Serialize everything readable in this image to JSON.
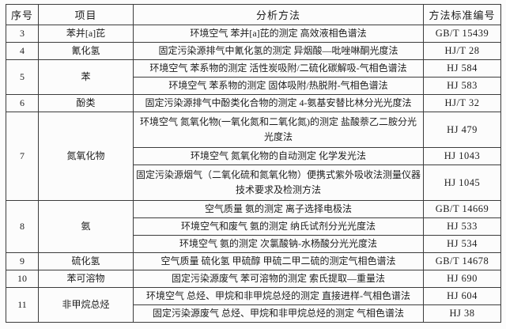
{
  "table": {
    "headers": [
      "序号",
      "项目",
      "分析方法",
      "方法标准编号"
    ],
    "rows": [
      {
        "seq": "3",
        "item": "苯并[a]芘",
        "methods": [
          {
            "method": "环境空气 苯并[a]芘的测定 高效液相色谱法",
            "standard": "GB/T 15439",
            "lines": 1
          }
        ]
      },
      {
        "seq": "4",
        "item": "氰化氢",
        "methods": [
          {
            "method": "固定污染源排气中氰化氢的测定 异烟酸—吡唑啉酮光度法",
            "standard": "HJ/T 28",
            "lines": 1
          }
        ]
      },
      {
        "seq": "5",
        "item": "苯",
        "methods": [
          {
            "method": "环境空气 苯系物的测定 活性炭吸附/二硫化碳解吸-气相色谱法",
            "standard": "HJ 584",
            "lines": 1
          },
          {
            "method": "环境空气 苯系物的测定 固体吸附/热脱附-气相色谱法",
            "standard": "HJ 583",
            "lines": 1
          }
        ]
      },
      {
        "seq": "6",
        "item": "酚类",
        "methods": [
          {
            "method": "固定污染源排气中酚类化合物的测定 4-氨基安替比林分光光度法",
            "standard": "HJ/T 32",
            "lines": 1
          }
        ]
      },
      {
        "seq": "7",
        "item": "氮氧化物",
        "methods": [
          {
            "method": "环境空气 氮氧化物(一氧化氮和二氧化氮)的测定 盐酸萘乙二胺分光光度法",
            "standard": "HJ 479",
            "lines": 2
          },
          {
            "method": "环境空气 氮氧化物的自动测定 化学发光法",
            "standard": "HJ 1043",
            "lines": 1
          },
          {
            "method": "固定污染源烟气（二氧化硫和氮氧化物）便携式紫外吸收法测量仪器技术要求及检测方法",
            "standard": "HJ 1045",
            "lines": 2
          }
        ]
      },
      {
        "seq": "8",
        "item": "氨",
        "methods": [
          {
            "method": "空气质量 氨的测定 离子选择电极法",
            "standard": "GB/T 14669",
            "lines": 1
          },
          {
            "method": "环境空气和废气 氨的测定 纳氏试剂分光光度法",
            "standard": "HJ 533",
            "lines": 1
          },
          {
            "method": "环境空气 氨的测定 次氯酸钠-水杨酸分光光度法",
            "standard": "HJ 534",
            "lines": 1
          }
        ]
      },
      {
        "seq": "9",
        "item": "硫化氢",
        "methods": [
          {
            "method": "空气质量 硫化氢 甲硫醇 甲硫二甲二硫的测定气相色谱法",
            "standard": "GB/T 14678",
            "lines": 1
          }
        ]
      },
      {
        "seq": "10",
        "item": "苯可溶物",
        "methods": [
          {
            "method": "固定污染源废气 苯可溶物的测定 索氏提取—重量法",
            "standard": "HJ 690",
            "lines": 1
          }
        ]
      },
      {
        "seq": "11",
        "item": "非甲烷总烃",
        "methods": [
          {
            "method": "环境空气 总烃、甲烷和非甲烷总烃的测定 直接进样-气相色谱法",
            "standard": "HJ 604",
            "lines": 1
          },
          {
            "method": "固定污染源废气 总烃、甲烷和非甲烷总烃的测定 气相色谱法",
            "standard": "HJ 38",
            "lines": 1
          }
        ]
      }
    ]
  }
}
